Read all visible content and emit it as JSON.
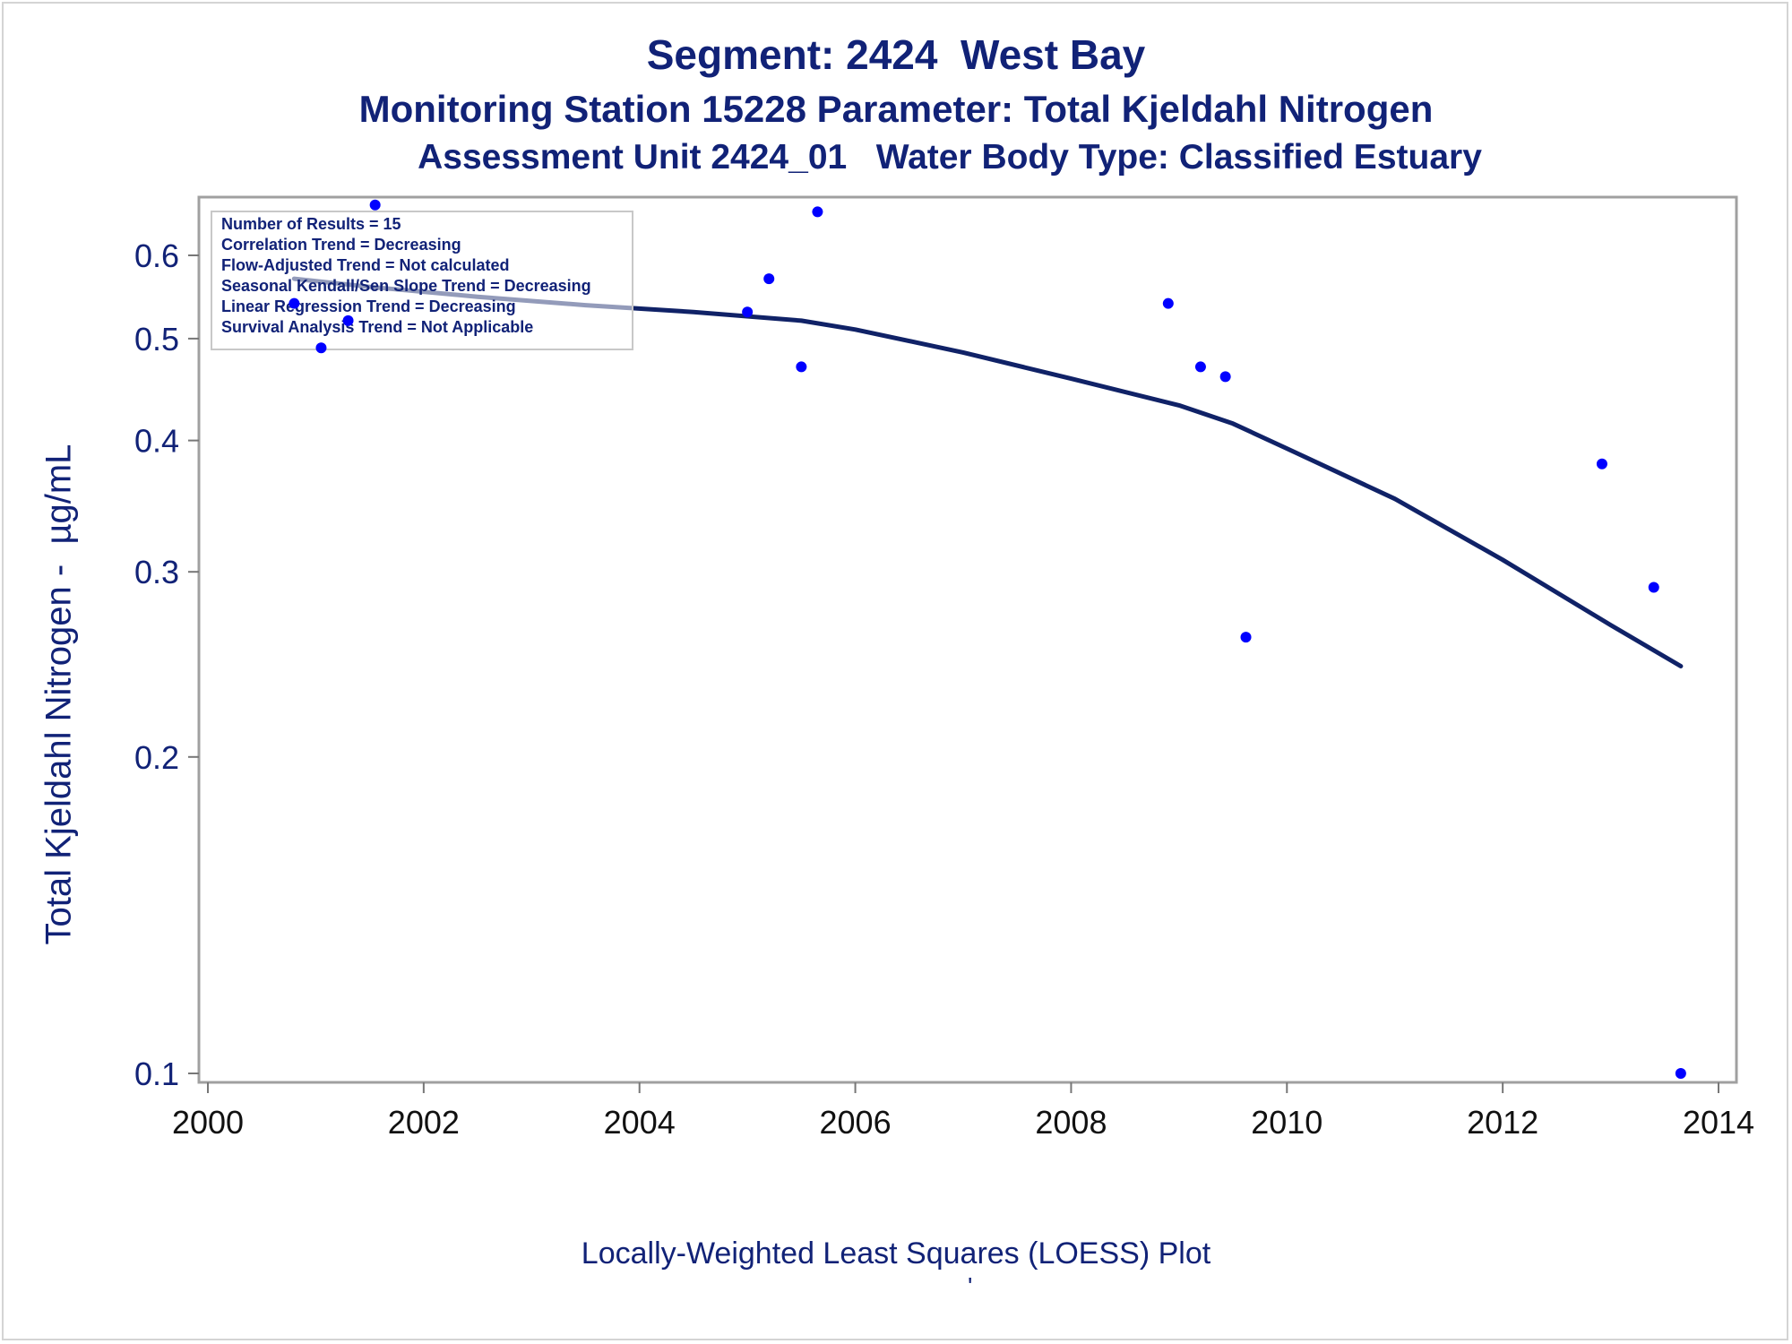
{
  "chart_data": {
    "type": "scatter",
    "title": "Segment: 2424  West Bay",
    "subtitle": "Monitoring Station 15228 Parameter: Total Kjeldahl Nitrogen",
    "subtitle2": "Assessment Unit 2424_01   Water Body Type: Classified Estuary",
    "xlabel": "",
    "ylabel": "Total Kjeldahl Nitrogen -  µg/mL",
    "footnote": "Locally-Weighted Least Squares (LOESS) Plot",
    "footnote2": "'",
    "xlim": [
      2000,
      2014
    ],
    "ylim": [
      0.1,
      0.68
    ],
    "y_scale": "log",
    "grid": false,
    "x_ticks": [
      "2000",
      "2002",
      "2004",
      "2006",
      "2008",
      "2010",
      "2012",
      "2014"
    ],
    "y_ticks": [
      "0.1",
      "0.2",
      "0.3",
      "0.4",
      "0.5",
      "0.6"
    ],
    "annotations": [
      "Number of Results = 15",
      "Correlation Trend = Decreasing",
      "Flow-Adjusted Trend = Not calculated",
      "Seasonal Kendall/Sen Slope Trend = Decreasing",
      "Linear Regression Trend = Decreasing",
      "Survival Analysis Trend = Not Applicable"
    ],
    "series": [
      {
        "kind": "points",
        "color": "#0000ff",
        "x": [
          2000.8,
          2001.05,
          2001.3,
          2001.55,
          2005.0,
          2005.2,
          2005.5,
          2005.65,
          2008.9,
          2009.2,
          2009.43,
          2009.62,
          2012.92,
          2013.4,
          2013.65
        ],
        "y": [
          0.54,
          0.49,
          0.52,
          0.67,
          0.53,
          0.57,
          0.47,
          0.66,
          0.54,
          0.47,
          0.46,
          0.26,
          0.38,
          0.29,
          0.1
        ]
      },
      {
        "kind": "loess",
        "color": "#102267",
        "x": [
          2000.8,
          2001.5,
          2002.5,
          2003.5,
          2004.5,
          2005.5,
          2006,
          2007,
          2008,
          2009,
          2009.5,
          2010,
          2011,
          2012,
          2013,
          2013.65
        ],
        "y": [
          0.57,
          0.56,
          0.548,
          0.538,
          0.53,
          0.52,
          0.51,
          0.485,
          0.458,
          0.432,
          0.415,
          0.393,
          0.352,
          0.308,
          0.267,
          0.244
        ]
      }
    ]
  }
}
